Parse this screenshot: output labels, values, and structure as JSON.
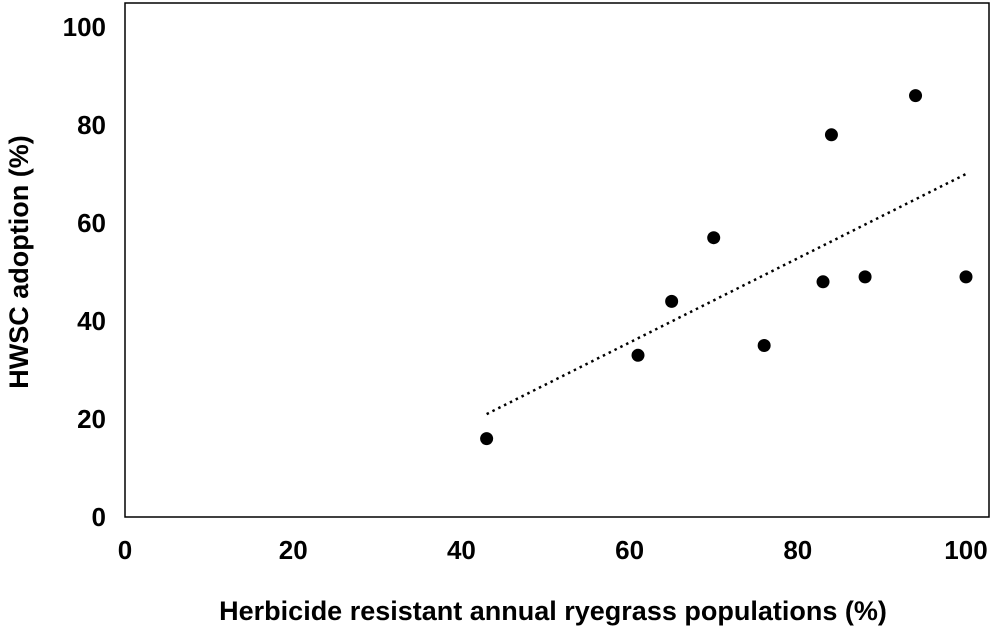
{
  "chart_data": {
    "type": "scatter",
    "title": "",
    "xlabel": "Herbicide resistant annual ryegrass populations (%)",
    "ylabel": "HWSC adoption (%)",
    "xlim": [
      0,
      100
    ],
    "ylim": [
      0,
      100
    ],
    "xticks": [
      "0",
      "20",
      "40",
      "60",
      "80",
      "100"
    ],
    "yticks": [
      "0",
      "20",
      "40",
      "60",
      "80",
      "100"
    ],
    "grid": false,
    "legend": "none",
    "series": [
      {
        "points": [
          {
            "x": 43,
            "y": 16
          },
          {
            "x": 61,
            "y": 33
          },
          {
            "x": 65,
            "y": 44
          },
          {
            "x": 70,
            "y": 57
          },
          {
            "x": 76,
            "y": 35
          },
          {
            "x": 83,
            "y": 48
          },
          {
            "x": 84,
            "y": 78
          },
          {
            "x": 88,
            "y": 49
          },
          {
            "x": 94,
            "y": 86
          },
          {
            "x": 100,
            "y": 49
          }
        ],
        "color": "#000000"
      }
    ],
    "trendline": {
      "style": "dotted",
      "start": {
        "x": 43,
        "y": 21
      },
      "end": {
        "x": 100,
        "y": 70
      },
      "color": "#000000"
    }
  }
}
